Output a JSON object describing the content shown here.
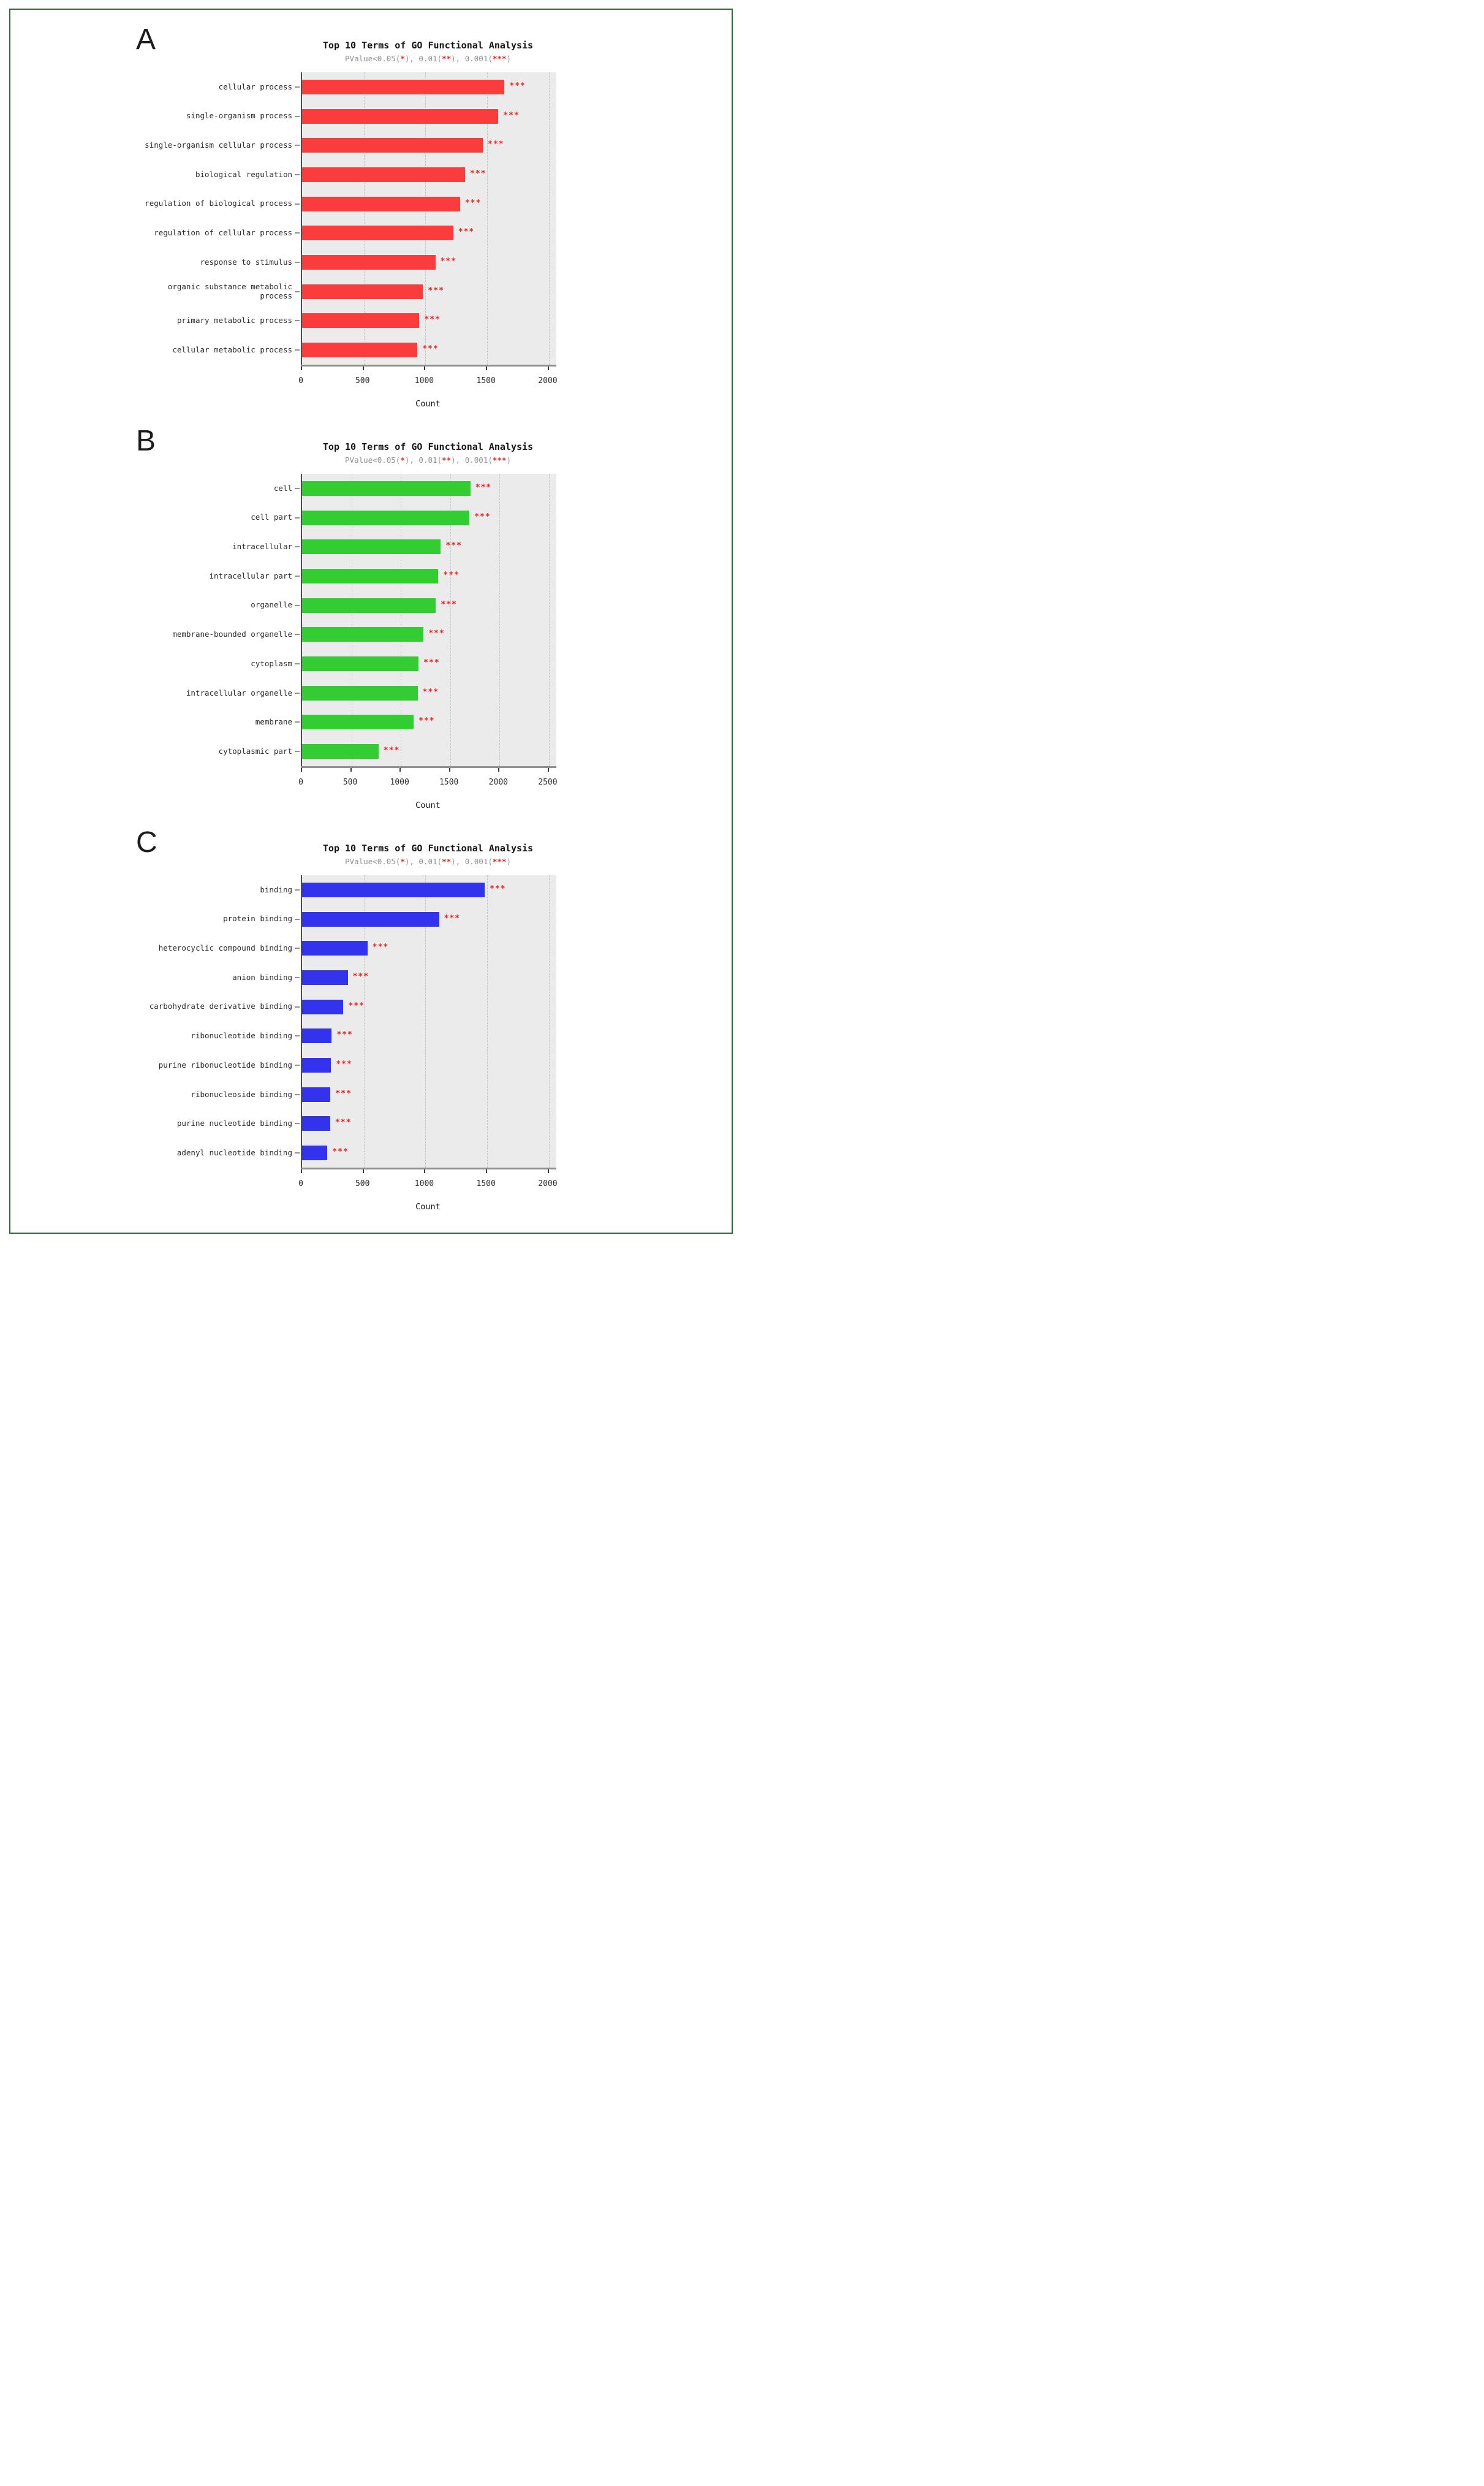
{
  "figure": {
    "border_color": "#2e6b34",
    "background": "#ffffff",
    "significance_color": "#ee2222"
  },
  "chart_data": [
    {
      "panel_letter": "A",
      "type": "bar",
      "orientation": "horizontal",
      "title": "Top 10 Terms of GO Functional Analysis",
      "subtitle_parts": [
        {
          "text": "PValue<0.05(",
          "star": false
        },
        {
          "text": "*",
          "star": true
        },
        {
          "text": "), 0.01(",
          "star": false
        },
        {
          "text": "**",
          "star": true
        },
        {
          "text": "), 0.001(",
          "star": false
        },
        {
          "text": "***",
          "star": true
        },
        {
          "text": ")",
          "star": false
        }
      ],
      "categories": [
        "cellular process",
        "single-organism process",
        "single-organism cellular process",
        "biological regulation",
        "regulation of biological process",
        "regulation of cellular process",
        "response to stimulus",
        "organic substance metabolic process",
        "primary metabolic process",
        "cellular metabolic process"
      ],
      "values": [
        1640,
        1590,
        1465,
        1320,
        1280,
        1225,
        1080,
        980,
        950,
        935
      ],
      "significance": [
        "***",
        "***",
        "***",
        "***",
        "***",
        "***",
        "***",
        "***",
        "***",
        "***"
      ],
      "bar_color": "#fb3c3c",
      "plot_bg": "#ebebeb",
      "grid": "dashed-vertical",
      "legend": null,
      "xlabel": "Count",
      "xlim": [
        0,
        2000
      ],
      "xticks": [
        0,
        500,
        1000,
        1500,
        2000
      ]
    },
    {
      "panel_letter": "B",
      "type": "bar",
      "orientation": "horizontal",
      "title": "Top 10 Terms of GO Functional Analysis",
      "subtitle_parts": [
        {
          "text": "PValue<0.05(",
          "star": false
        },
        {
          "text": "*",
          "star": true
        },
        {
          "text": "), 0.01(",
          "star": false
        },
        {
          "text": "**",
          "star": true
        },
        {
          "text": "), 0.001(",
          "star": false
        },
        {
          "text": "***",
          "star": true
        },
        {
          "text": ")",
          "star": false
        }
      ],
      "categories": [
        "cell",
        "cell part",
        "intracellular",
        "intracellular part",
        "organelle",
        "membrane-bounded organelle",
        "cytoplasm",
        "intracellular organelle",
        "membrane",
        "cytoplasmic part"
      ],
      "values": [
        1705,
        1695,
        1405,
        1380,
        1355,
        1230,
        1180,
        1170,
        1130,
        775
      ],
      "significance": [
        "***",
        "***",
        "***",
        "***",
        "***",
        "***",
        "***",
        "***",
        "***",
        "***"
      ],
      "bar_color": "#33cc33",
      "plot_bg": "#ebebeb",
      "grid": "dashed-vertical",
      "legend": null,
      "xlabel": "Count",
      "xlim": [
        0,
        2500
      ],
      "xticks": [
        0,
        500,
        1000,
        1500,
        2000,
        2500
      ]
    },
    {
      "panel_letter": "C",
      "type": "bar",
      "orientation": "horizontal",
      "title": "Top 10 Terms of GO Functional Analysis",
      "subtitle_parts": [
        {
          "text": "PValue<0.05(",
          "star": false
        },
        {
          "text": "*",
          "star": true
        },
        {
          "text": "), 0.01(",
          "star": false
        },
        {
          "text": "**",
          "star": true
        },
        {
          "text": "), 0.001(",
          "star": false
        },
        {
          "text": "***",
          "star": true
        },
        {
          "text": ")",
          "star": false
        }
      ],
      "categories": [
        "binding",
        "protein binding",
        "heterocyclic compound binding",
        "anion binding",
        "carbohydrate derivative binding",
        "ribonucleotide binding",
        "purine ribonucleotide binding",
        "ribonucleoside binding",
        "purine nucleotide binding",
        "adenyl nucleotide binding"
      ],
      "values": [
        1480,
        1110,
        530,
        370,
        335,
        240,
        235,
        230,
        228,
        205
      ],
      "significance": [
        "***",
        "***",
        "***",
        "***",
        "***",
        "***",
        "***",
        "***",
        "***",
        "***"
      ],
      "bar_color": "#3333ee",
      "plot_bg": "#ebebeb",
      "grid": "dashed-vertical",
      "legend": null,
      "xlabel": "Count",
      "xlim": [
        0,
        2000
      ],
      "xticks": [
        0,
        500,
        1000,
        1500,
        2000
      ]
    }
  ]
}
